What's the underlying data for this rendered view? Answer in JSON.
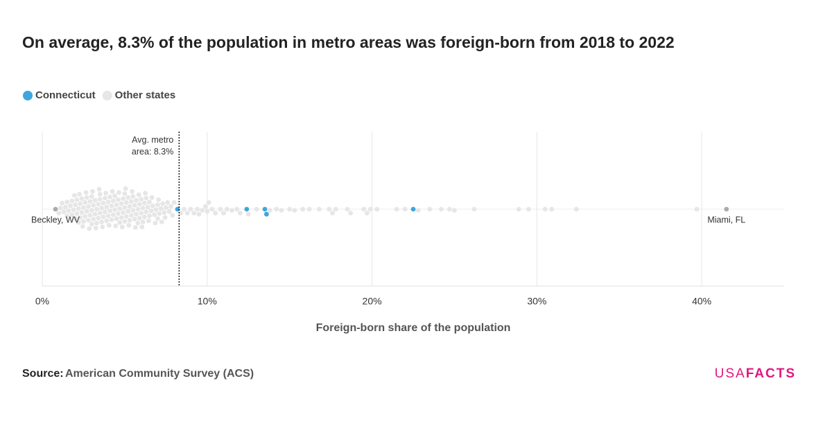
{
  "chart_data": {
    "type": "beeswarm",
    "title": "On average, 8.3% of the population in metro areas was foreign-born from 2018 to 2022",
    "x_label": "Foreign-born share of the population",
    "xlim": [
      0,
      45
    ],
    "xticks": [
      {
        "value": 0,
        "label": "0%"
      },
      {
        "value": 10,
        "label": "10%"
      },
      {
        "value": 20,
        "label": "20%"
      },
      {
        "value": 30,
        "label": "30%"
      },
      {
        "value": 40,
        "label": "40%"
      }
    ],
    "grid": true,
    "average": {
      "value": 8.3,
      "label": "Avg. metro area: 8.3%"
    },
    "annotations": [
      {
        "text": "Beckley, WV",
        "x": 0.8,
        "color": "#aaaaaa"
      },
      {
        "text": "Miami, FL",
        "x": 41.5,
        "color": "#aaaaaa"
      }
    ],
    "series": [
      {
        "name": "Connecticut",
        "color": "#3ea6dc",
        "x": [
          8.2,
          12.4,
          13.5,
          13.6,
          22.5
        ]
      },
      {
        "name": "Other states",
        "color": "#e6e6e6",
        "x": [
          1.0,
          1.1,
          1.2,
          1.3,
          1.4,
          1.5,
          1.5,
          1.6,
          1.7,
          1.8,
          1.8,
          1.9,
          2.0,
          2.0,
          2.1,
          2.1,
          2.2,
          2.2,
          2.3,
          2.3,
          2.4,
          2.4,
          2.5,
          2.5,
          2.6,
          2.6,
          2.7,
          2.7,
          2.8,
          2.8,
          2.9,
          2.9,
          3.0,
          3.0,
          3.0,
          3.1,
          3.1,
          3.2,
          3.2,
          3.3,
          3.3,
          3.4,
          3.4,
          3.5,
          3.5,
          3.5,
          3.6,
          3.6,
          3.7,
          3.7,
          3.8,
          3.8,
          3.9,
          3.9,
          4.0,
          4.0,
          4.1,
          4.1,
          4.2,
          4.2,
          4.3,
          4.3,
          4.4,
          4.4,
          4.5,
          4.5,
          4.6,
          4.6,
          4.7,
          4.7,
          4.8,
          4.8,
          4.9,
          4.9,
          5.0,
          5.0,
          5.0,
          5.1,
          5.1,
          5.2,
          5.2,
          5.3,
          5.3,
          5.4,
          5.4,
          5.5,
          5.5,
          5.6,
          5.6,
          5.7,
          5.7,
          5.8,
          5.8,
          5.9,
          5.9,
          6.0,
          6.0,
          6.1,
          6.1,
          6.2,
          6.2,
          6.3,
          6.3,
          6.4,
          6.5,
          6.5,
          6.6,
          6.7,
          6.8,
          6.9,
          7.0,
          7.0,
          7.1,
          7.2,
          7.3,
          7.4,
          7.5,
          7.6,
          7.7,
          7.8,
          7.9,
          8.0,
          1.95,
          2.25,
          2.45,
          2.65,
          2.85,
          3.05,
          3.25,
          3.45,
          3.65,
          3.85,
          4.05,
          4.25,
          4.45,
          4.65,
          4.85,
          5.05,
          5.25,
          5.45,
          5.65,
          5.85,
          6.05,
          6.25,
          6.45,
          6.65,
          6.85,
          7.05,
          7.25,
          7.45,
          8.4,
          8.6,
          8.8,
          9.0,
          9.2,
          9.4,
          9.5,
          9.7,
          9.9,
          10.0,
          10.1,
          10.3,
          10.5,
          10.8,
          11.0,
          11.2,
          11.5,
          11.8,
          12.0,
          12.5,
          13.0,
          13.8,
          14.2,
          14.5,
          15.0,
          15.3,
          15.8,
          16.2,
          16.8,
          17.4,
          17.6,
          17.8,
          18.5,
          18.7,
          19.5,
          19.7,
          19.9,
          20.3,
          21.5,
          22.0,
          22.8,
          23.5,
          24.2,
          24.7,
          25.0,
          26.2,
          28.9,
          29.5,
          30.5,
          30.9,
          32.4,
          39.7
        ]
      }
    ],
    "source_label": "Source:",
    "source": "American Community Survey (ACS)",
    "logo": [
      "USA",
      "FACTS"
    ]
  }
}
